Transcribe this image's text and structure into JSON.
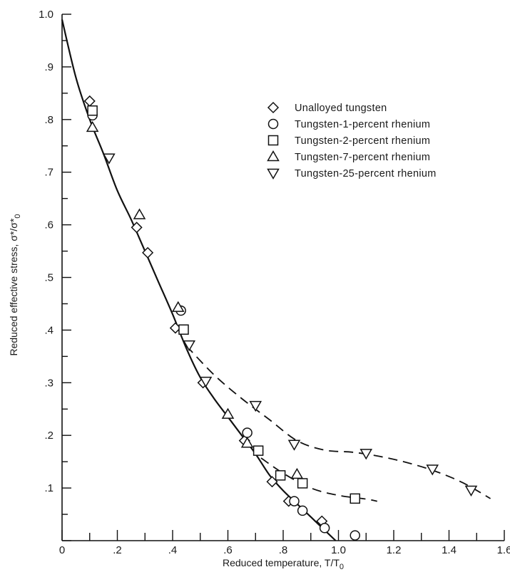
{
  "chart_data": {
    "type": "scatter",
    "xlabel": "Reduced temperature, T/T",
    "xlabel_sub": "0",
    "ylabel": "Reduced effective stress, σ*/σ*",
    "ylabel_sub": "0",
    "xlim": [
      0,
      1.6
    ],
    "ylim": [
      0,
      1.0
    ],
    "x_ticks": [
      {
        "value": 0,
        "label": "0"
      },
      {
        "value": 0.2,
        "label": ".2"
      },
      {
        "value": 0.4,
        "label": ".4"
      },
      {
        "value": 0.6,
        "label": ".6"
      },
      {
        "value": 0.8,
        "label": ".8"
      },
      {
        "value": 1.0,
        "label": "1.0"
      },
      {
        "value": 1.2,
        "label": "1.2"
      },
      {
        "value": 1.4,
        "label": "1.4"
      },
      {
        "value": 1.6,
        "label": "1.6"
      }
    ],
    "y_ticks": [
      {
        "value": 1.0,
        "label": "1.0"
      },
      {
        "value": 0.9,
        "label": ".9"
      },
      {
        "value": 0.8,
        "label": ".8"
      },
      {
        "value": 0.7,
        "label": ".7"
      },
      {
        "value": 0.6,
        "label": ".6"
      },
      {
        "value": 0.5,
        "label": ".5"
      },
      {
        "value": 0.4,
        "label": ".4"
      },
      {
        "value": 0.3,
        "label": ".3"
      },
      {
        "value": 0.2,
        "label": ".2"
      },
      {
        "value": 0.1,
        "label": ".1"
      }
    ],
    "legend_position": "top-right",
    "series": [
      {
        "name": "Unalloyed tungsten",
        "marker": "diamond",
        "points": [
          [
            0.1,
            0.835
          ],
          [
            0.27,
            0.595
          ],
          [
            0.31,
            0.547
          ],
          [
            0.41,
            0.404
          ],
          [
            0.51,
            0.3
          ],
          [
            0.66,
            0.19
          ],
          [
            0.76,
            0.112
          ],
          [
            0.82,
            0.075
          ],
          [
            0.94,
            0.037
          ]
        ]
      },
      {
        "name": "Tungsten-1-percent rhenium",
        "marker": "circle",
        "points": [
          [
            0.11,
            0.808
          ],
          [
            0.43,
            0.437
          ],
          [
            0.67,
            0.205
          ],
          [
            0.84,
            0.075
          ],
          [
            0.87,
            0.057
          ],
          [
            0.95,
            0.024
          ],
          [
            1.06,
            0.01
          ]
        ]
      },
      {
        "name": "Tungsten-2-percent rhenium",
        "marker": "square",
        "points": [
          [
            0.11,
            0.817
          ],
          [
            0.44,
            0.401
          ],
          [
            0.71,
            0.171
          ],
          [
            0.79,
            0.124
          ],
          [
            0.87,
            0.109
          ],
          [
            1.06,
            0.08
          ]
        ]
      },
      {
        "name": "Tungsten-7-percent rhenium",
        "marker": "triangle-up",
        "points": [
          [
            0.11,
            0.785
          ],
          [
            0.28,
            0.619
          ],
          [
            0.42,
            0.443
          ],
          [
            0.6,
            0.24
          ],
          [
            0.67,
            0.185
          ],
          [
            0.85,
            0.126
          ]
        ]
      },
      {
        "name": "Tungsten-25-percent rhenium",
        "marker": "triangle-down",
        "points": [
          [
            0.17,
            0.727
          ],
          [
            0.46,
            0.372
          ],
          [
            0.52,
            0.303
          ],
          [
            0.7,
            0.257
          ],
          [
            0.84,
            0.183
          ],
          [
            1.1,
            0.166
          ],
          [
            1.34,
            0.136
          ],
          [
            1.48,
            0.096
          ]
        ]
      }
    ],
    "curves": [
      {
        "style": "solid",
        "points": [
          [
            0,
            0.99
          ],
          [
            0.05,
            0.88
          ],
          [
            0.1,
            0.8
          ],
          [
            0.15,
            0.735
          ],
          [
            0.2,
            0.665
          ],
          [
            0.25,
            0.61
          ],
          [
            0.3,
            0.55
          ],
          [
            0.35,
            0.49
          ],
          [
            0.4,
            0.43
          ],
          [
            0.45,
            0.365
          ],
          [
            0.5,
            0.31
          ],
          [
            0.55,
            0.27
          ],
          [
            0.6,
            0.235
          ],
          [
            0.65,
            0.2
          ],
          [
            0.7,
            0.165
          ],
          [
            0.75,
            0.125
          ],
          [
            0.8,
            0.095
          ],
          [
            0.85,
            0.07
          ],
          [
            0.9,
            0.045
          ],
          [
            0.95,
            0.02
          ],
          [
            0.99,
            0.0
          ]
        ]
      },
      {
        "style": "dashed",
        "points": [
          [
            0.72,
            0.157
          ],
          [
            0.8,
            0.128
          ],
          [
            0.9,
            0.1
          ],
          [
            1.0,
            0.086
          ],
          [
            1.1,
            0.079
          ],
          [
            1.14,
            0.075
          ]
        ]
      },
      {
        "style": "dashed",
        "points": [
          [
            0.45,
            0.37
          ],
          [
            0.55,
            0.315
          ],
          [
            0.65,
            0.27
          ],
          [
            0.75,
            0.23
          ],
          [
            0.85,
            0.19
          ],
          [
            0.95,
            0.172
          ],
          [
            1.05,
            0.168
          ],
          [
            1.15,
            0.16
          ],
          [
            1.25,
            0.148
          ],
          [
            1.35,
            0.132
          ],
          [
            1.45,
            0.11
          ],
          [
            1.55,
            0.08
          ]
        ]
      }
    ]
  }
}
